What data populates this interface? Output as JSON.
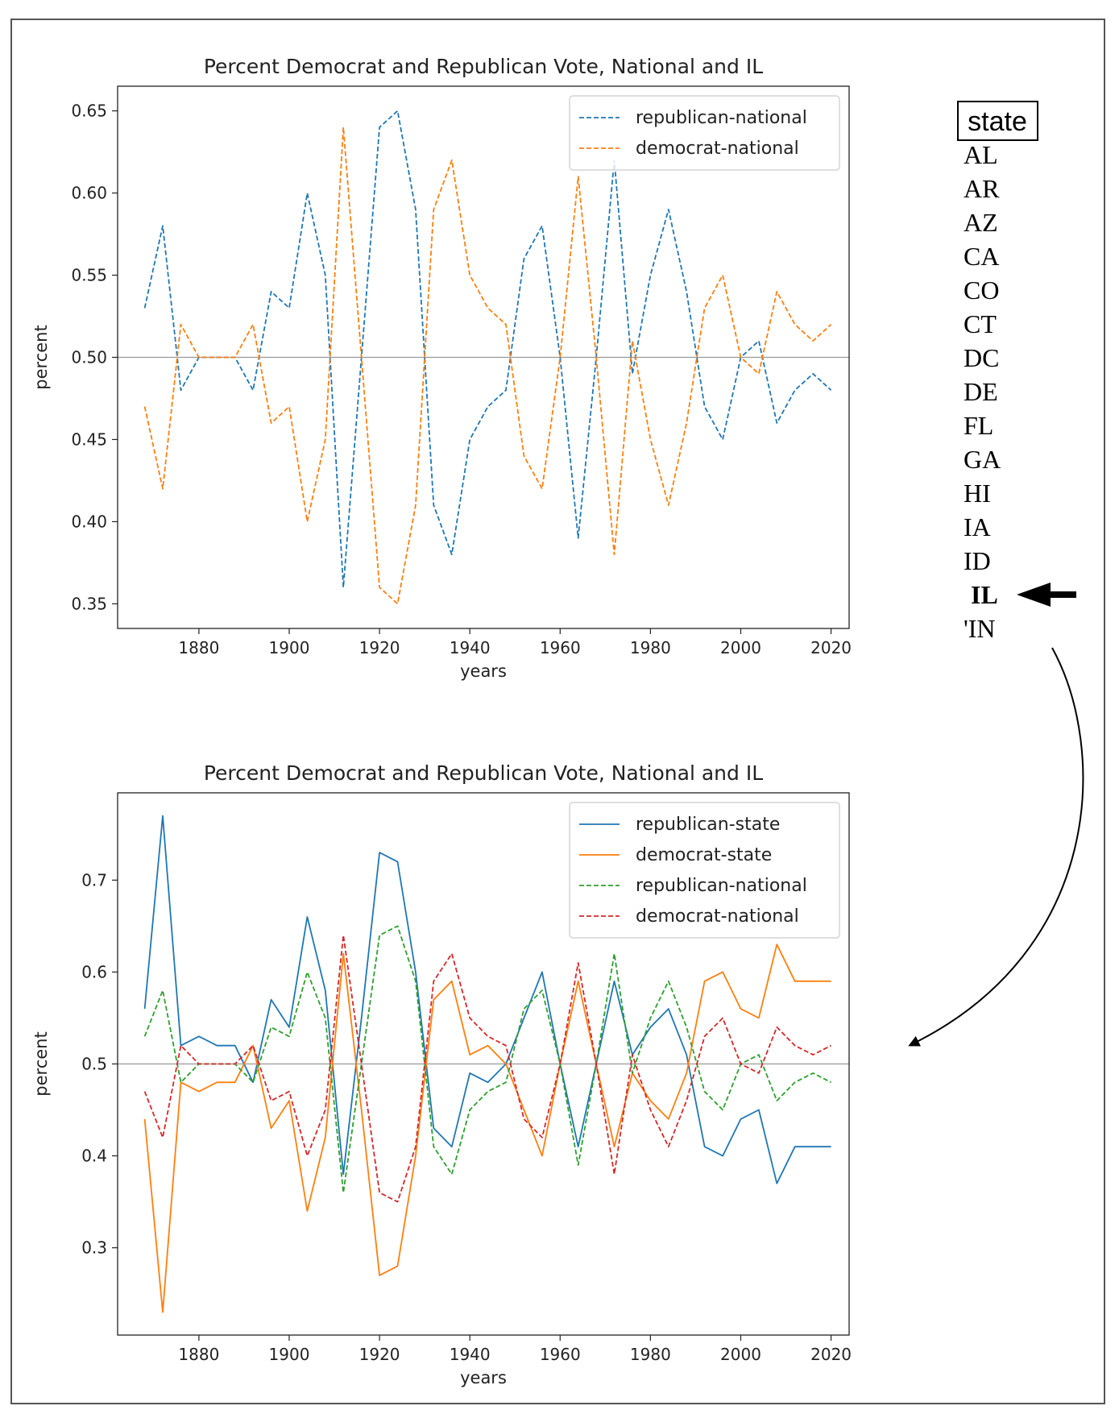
{
  "colors": {
    "blue": "#1f77b4",
    "orange": "#ff7f0e",
    "green": "#2ca02c",
    "red": "#d62728",
    "reference_line": "#999999"
  },
  "state_selector": {
    "header": "state",
    "items": [
      "AL",
      "AR",
      "AZ",
      "CA",
      "CO",
      "CT",
      "DC",
      "DE",
      "FL",
      "GA",
      "HI",
      "IA",
      "ID",
      "IL",
      "'IN"
    ],
    "selected": "IL"
  },
  "chart_data": [
    {
      "type": "line",
      "title": "Percent Democrat and Republican Vote, National and IL",
      "xlabel": "years",
      "ylabel": "percent",
      "xlim": [
        1862,
        2024
      ],
      "ylim": [
        0.335,
        0.665
      ],
      "xticks": [
        1880,
        1900,
        1920,
        1940,
        1960,
        1980,
        2000,
        2020
      ],
      "yticks": [
        0.35,
        0.4,
        0.45,
        0.5,
        0.55,
        0.6,
        0.65
      ],
      "ytick_labels": [
        "0.35",
        "0.40",
        "0.45",
        "0.50",
        "0.55",
        "0.60",
        "0.65"
      ],
      "reference_line": 0.5,
      "legend_position": "top-right",
      "x": [
        1868,
        1872,
        1876,
        1880,
        1884,
        1888,
        1892,
        1896,
        1900,
        1904,
        1908,
        1912,
        1916,
        1920,
        1924,
        1928,
        1932,
        1936,
        1940,
        1944,
        1948,
        1952,
        1956,
        1960,
        1964,
        1968,
        1972,
        1976,
        1980,
        1984,
        1988,
        1992,
        1996,
        2000,
        2004,
        2008,
        2012,
        2016,
        2020
      ],
      "series": [
        {
          "name": "republican-national",
          "color": "#1f77b4",
          "style": "dashed",
          "values": [
            0.53,
            0.58,
            0.48,
            0.5,
            0.5,
            0.5,
            0.48,
            0.54,
            0.53,
            0.6,
            0.55,
            0.36,
            0.5,
            0.64,
            0.65,
            0.59,
            0.41,
            0.38,
            0.45,
            0.47,
            0.48,
            0.56,
            0.58,
            0.5,
            0.39,
            0.5,
            0.62,
            0.49,
            0.55,
            0.59,
            0.54,
            0.47,
            0.45,
            0.5,
            0.51,
            0.46,
            0.48,
            0.49,
            0.48
          ]
        },
        {
          "name": "democrat-national",
          "color": "#ff7f0e",
          "style": "dashed",
          "values": [
            0.47,
            0.42,
            0.52,
            0.5,
            0.5,
            0.5,
            0.52,
            0.46,
            0.47,
            0.4,
            0.45,
            0.64,
            0.5,
            0.36,
            0.35,
            0.41,
            0.59,
            0.62,
            0.55,
            0.53,
            0.52,
            0.44,
            0.42,
            0.5,
            0.61,
            0.5,
            0.38,
            0.51,
            0.45,
            0.41,
            0.46,
            0.53,
            0.55,
            0.5,
            0.49,
            0.54,
            0.52,
            0.51,
            0.52
          ]
        }
      ]
    },
    {
      "type": "line",
      "title": "Percent Democrat and Republican Vote, National and IL",
      "xlabel": "years",
      "ylabel": "percent",
      "xlim": [
        1862,
        2024
      ],
      "ylim": [
        0.205,
        0.795
      ],
      "xticks": [
        1880,
        1900,
        1920,
        1940,
        1960,
        1980,
        2000,
        2020
      ],
      "yticks": [
        0.3,
        0.4,
        0.5,
        0.6,
        0.7
      ],
      "ytick_labels": [
        "0.3",
        "0.4",
        "0.5",
        "0.6",
        "0.7"
      ],
      "reference_line": 0.5,
      "legend_position": "top-right",
      "x": [
        1868,
        1872,
        1876,
        1880,
        1884,
        1888,
        1892,
        1896,
        1900,
        1904,
        1908,
        1912,
        1916,
        1920,
        1924,
        1928,
        1932,
        1936,
        1940,
        1944,
        1948,
        1952,
        1956,
        1960,
        1964,
        1968,
        1972,
        1976,
        1980,
        1984,
        1988,
        1992,
        1996,
        2000,
        2004,
        2008,
        2012,
        2016,
        2020
      ],
      "series": [
        {
          "name": "republican-state",
          "color": "#1f77b4",
          "style": "solid",
          "values": [
            0.56,
            0.77,
            0.52,
            0.53,
            0.52,
            0.52,
            0.48,
            0.57,
            0.54,
            0.66,
            0.58,
            0.38,
            0.55,
            0.73,
            0.72,
            0.6,
            0.43,
            0.41,
            0.49,
            0.48,
            0.5,
            0.55,
            0.6,
            0.5,
            0.41,
            0.5,
            0.59,
            0.51,
            0.54,
            0.56,
            0.51,
            0.41,
            0.4,
            0.44,
            0.45,
            0.37,
            0.41,
            0.41,
            0.41
          ]
        },
        {
          "name": "democrat-state",
          "color": "#ff7f0e",
          "style": "solid",
          "values": [
            0.44,
            0.23,
            0.48,
            0.47,
            0.48,
            0.48,
            0.52,
            0.43,
            0.46,
            0.34,
            0.42,
            0.62,
            0.45,
            0.27,
            0.28,
            0.4,
            0.57,
            0.59,
            0.51,
            0.52,
            0.5,
            0.45,
            0.4,
            0.5,
            0.59,
            0.5,
            0.41,
            0.49,
            0.46,
            0.44,
            0.49,
            0.59,
            0.6,
            0.56,
            0.55,
            0.63,
            0.59,
            0.59,
            0.59
          ]
        },
        {
          "name": "republican-national",
          "color": "#2ca02c",
          "style": "dashed",
          "values": [
            0.53,
            0.58,
            0.48,
            0.5,
            0.5,
            0.5,
            0.48,
            0.54,
            0.53,
            0.6,
            0.55,
            0.36,
            0.5,
            0.64,
            0.65,
            0.59,
            0.41,
            0.38,
            0.45,
            0.47,
            0.48,
            0.56,
            0.58,
            0.5,
            0.39,
            0.5,
            0.62,
            0.49,
            0.55,
            0.59,
            0.54,
            0.47,
            0.45,
            0.5,
            0.51,
            0.46,
            0.48,
            0.49,
            0.48
          ]
        },
        {
          "name": "democrat-national",
          "color": "#d62728",
          "style": "dashed",
          "values": [
            0.47,
            0.42,
            0.52,
            0.5,
            0.5,
            0.5,
            0.52,
            0.46,
            0.47,
            0.4,
            0.45,
            0.64,
            0.5,
            0.36,
            0.35,
            0.41,
            0.59,
            0.62,
            0.55,
            0.53,
            0.52,
            0.44,
            0.42,
            0.5,
            0.61,
            0.5,
            0.38,
            0.51,
            0.45,
            0.41,
            0.46,
            0.53,
            0.55,
            0.5,
            0.49,
            0.54,
            0.52,
            0.51,
            0.52
          ]
        }
      ]
    }
  ]
}
